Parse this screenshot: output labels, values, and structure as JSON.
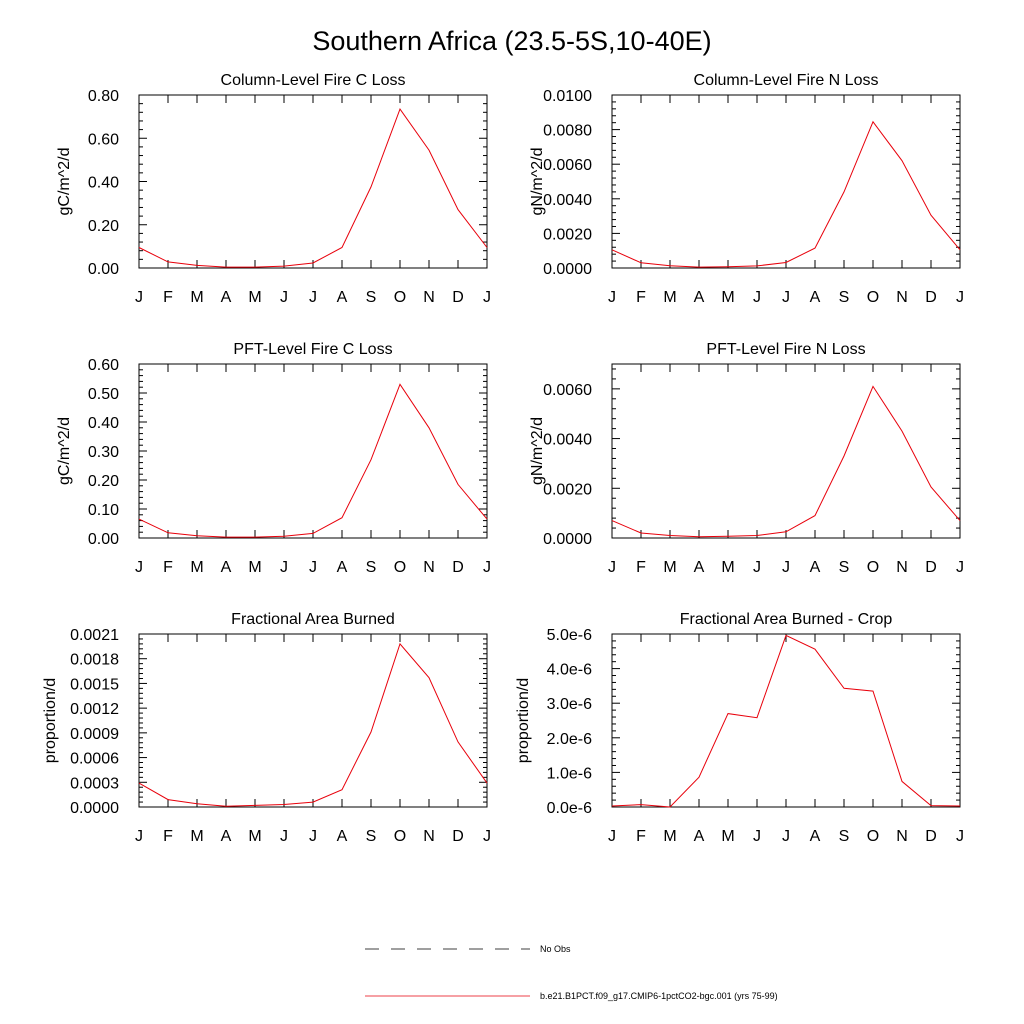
{
  "figure": {
    "title": "Southern Africa (23.5-5S,10-40E)",
    "series_color": "#e8000b",
    "obs_color": "#000000"
  },
  "legend": {
    "obs_label": "No Obs",
    "model_label": "b.e21.B1PCT.f09_g17.CMIP6-1pctCO2-bgc.001 (yrs 75-99)"
  },
  "chart_data": [
    {
      "type": "line",
      "title": "Column-Level Fire C Loss",
      "xlabel": "",
      "ylabel": "gC/m^2/d",
      "x": [
        "J",
        "F",
        "M",
        "A",
        "M",
        "J",
        "J",
        "A",
        "S",
        "O",
        "N",
        "D",
        "J"
      ],
      "ylim": [
        0,
        0.8
      ],
      "yticks": [
        0,
        0.2,
        0.4,
        0.6,
        0.8
      ],
      "ytick_labels": [
        "0.00",
        "0.20",
        "0.40",
        "0.60",
        "0.80"
      ],
      "series": [
        {
          "values": [
            0.095,
            0.028,
            0.012,
            0.004,
            0.004,
            0.009,
            0.023,
            0.095,
            0.375,
            0.735,
            0.545,
            0.27,
            0.095
          ]
        }
      ]
    },
    {
      "type": "line",
      "title": "Column-Level Fire N Loss",
      "xlabel": "",
      "ylabel": "gN/m^2/d",
      "x": [
        "J",
        "F",
        "M",
        "A",
        "M",
        "J",
        "J",
        "A",
        "S",
        "O",
        "N",
        "D",
        "J"
      ],
      "ylim": [
        0,
        0.01
      ],
      "yticks": [
        0,
        0.002,
        0.004,
        0.006,
        0.008,
        0.01
      ],
      "ytick_labels": [
        "0.0000",
        "0.0020",
        "0.0040",
        "0.0060",
        "0.0080",
        "0.0100"
      ],
      "series": [
        {
          "values": [
            0.00105,
            0.0003,
            0.00013,
            5e-05,
            7e-05,
            0.00012,
            0.00032,
            0.00115,
            0.0044,
            0.00845,
            0.0062,
            0.00305,
            0.00105
          ]
        }
      ]
    },
    {
      "type": "line",
      "title": "PFT-Level Fire C Loss",
      "xlabel": "",
      "ylabel": "gC/m^2/d",
      "x": [
        "J",
        "F",
        "M",
        "A",
        "M",
        "J",
        "J",
        "A",
        "S",
        "O",
        "N",
        "D",
        "J"
      ],
      "ylim": [
        0,
        0.6
      ],
      "yticks": [
        0,
        0.1,
        0.2,
        0.3,
        0.4,
        0.5,
        0.6
      ],
      "ytick_labels": [
        "0.00",
        "0.10",
        "0.20",
        "0.30",
        "0.40",
        "0.50",
        "0.60"
      ],
      "series": [
        {
          "values": [
            0.065,
            0.018,
            0.008,
            0.003,
            0.003,
            0.006,
            0.016,
            0.07,
            0.27,
            0.53,
            0.38,
            0.185,
            0.065
          ]
        }
      ]
    },
    {
      "type": "line",
      "title": "PFT-Level Fire N Loss",
      "xlabel": "",
      "ylabel": "gN/m^2/d",
      "x": [
        "J",
        "F",
        "M",
        "A",
        "M",
        "J",
        "J",
        "A",
        "S",
        "O",
        "N",
        "D",
        "J"
      ],
      "ylim": [
        0,
        0.007
      ],
      "yticks": [
        0,
        0.002,
        0.004,
        0.006
      ],
      "ytick_labels": [
        "0.0000",
        "0.0020",
        "0.0040",
        "0.0060"
      ],
      "series": [
        {
          "values": [
            0.0007,
            0.0002,
            0.0001,
            5e-05,
            7e-05,
            0.0001,
            0.00025,
            0.0009,
            0.0033,
            0.0061,
            0.0043,
            0.00205,
            0.0007
          ]
        }
      ]
    },
    {
      "type": "line",
      "title": "Fractional Area Burned",
      "xlabel": "",
      "ylabel": "proportion/d",
      "x": [
        "J",
        "F",
        "M",
        "A",
        "M",
        "J",
        "J",
        "A",
        "S",
        "O",
        "N",
        "D",
        "J"
      ],
      "ylim": [
        0,
        0.0021
      ],
      "yticks": [
        0,
        0.0003,
        0.0006,
        0.0009,
        0.0012,
        0.0015,
        0.0018,
        0.0021
      ],
      "ytick_labels": [
        "0.0000",
        "0.0003",
        "0.0006",
        "0.0009",
        "0.0012",
        "0.0015",
        "0.0018",
        "0.0021"
      ],
      "series": [
        {
          "values": [
            0.00029,
            9e-05,
            4e-05,
            1e-05,
            2e-05,
            3e-05,
            6e-05,
            0.00021,
            0.00091,
            0.00198,
            0.00157,
            0.00079,
            0.00029
          ]
        }
      ]
    },
    {
      "type": "line",
      "title": "Fractional Area Burned - Crop",
      "xlabel": "",
      "ylabel": "proportion/d",
      "x": [
        "J",
        "F",
        "M",
        "A",
        "M",
        "J",
        "J",
        "A",
        "S",
        "O",
        "N",
        "D",
        "J"
      ],
      "ylim": [
        0,
        5e-06
      ],
      "yticks": [
        0,
        1e-06,
        2e-06,
        3e-06,
        4e-06,
        5e-06
      ],
      "ytick_labels": [
        "0.0e-6",
        "1.0e-6",
        "2.0e-6",
        "3.0e-6",
        "4.0e-6",
        "5.0e-6"
      ],
      "series": [
        {
          "values": [
            3e-08,
            7e-08,
            0.0,
            8.6e-07,
            2.7e-06,
            2.58e-06,
            4.96e-06,
            4.56e-06,
            3.43e-06,
            3.35e-06,
            7.4e-07,
            4e-08,
            3e-08
          ]
        }
      ]
    }
  ]
}
